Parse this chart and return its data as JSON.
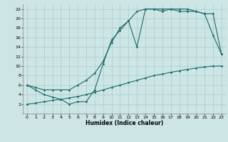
{
  "background_color": "#cde5e5",
  "grid_color": "#aacccc",
  "line_color": "#1a6b6b",
  "xlabel": "Humidex (Indice chaleur)",
  "xlim": [
    -0.5,
    23.5
  ],
  "ylim": [
    0,
    23
  ],
  "xticks": [
    0,
    1,
    2,
    3,
    4,
    5,
    6,
    7,
    8,
    9,
    10,
    11,
    12,
    13,
    14,
    15,
    16,
    17,
    18,
    19,
    20,
    21,
    22,
    23
  ],
  "yticks": [
    2,
    4,
    6,
    8,
    10,
    12,
    14,
    16,
    18,
    20,
    22
  ],
  "line1_x": [
    0,
    1,
    2,
    3,
    4,
    5,
    6,
    7,
    8,
    9,
    10,
    11,
    12,
    13,
    14,
    15,
    16,
    17,
    18,
    19,
    20,
    21,
    22,
    23
  ],
  "line1_y": [
    6,
    5,
    4,
    3.5,
    3,
    2,
    2.5,
    2.5,
    5,
    10.5,
    15.5,
    17.5,
    19.5,
    14,
    22,
    22,
    21.5,
    22,
    21.5,
    21.5,
    21.5,
    21,
    21,
    12.5
  ],
  "line2_x": [
    0,
    1,
    2,
    3,
    4,
    5,
    6,
    7,
    8,
    9,
    10,
    11,
    12,
    13,
    14,
    15,
    16,
    17,
    18,
    19,
    20,
    21,
    22,
    23
  ],
  "line2_y": [
    2,
    2.2,
    2.5,
    2.8,
    3.0,
    3.3,
    3.6,
    4.0,
    4.5,
    5.0,
    5.5,
    6.0,
    6.5,
    7.0,
    7.5,
    8.0,
    8.3,
    8.7,
    9.0,
    9.3,
    9.6,
    9.8,
    10.0,
    10.0
  ],
  "line3_x": [
    0,
    1,
    2,
    3,
    4,
    5,
    6,
    7,
    8,
    9,
    10,
    11,
    12,
    13,
    14,
    15,
    16,
    17,
    18,
    19,
    20,
    21,
    22,
    23
  ],
  "line3_y": [
    6,
    5.5,
    5,
    5,
    5,
    5,
    6,
    7,
    8.5,
    11,
    15,
    18,
    19.5,
    21.5,
    22,
    22,
    22,
    22,
    22,
    22,
    21.5,
    21,
    16.5,
    12.5
  ]
}
